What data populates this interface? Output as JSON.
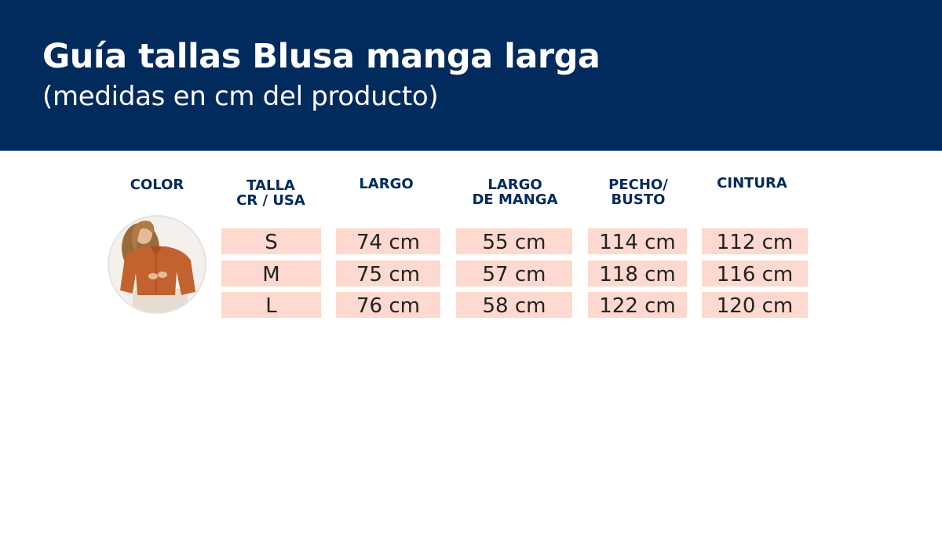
{
  "header": {
    "title": "Guía tallas Blusa manga larga",
    "subtitle": "(medidas en cm del producto)"
  },
  "colors": {
    "banner": "#012a5d",
    "cell_background": "#fdd9cf",
    "header_text": "#012a5d",
    "product_color": "#c2622e"
  },
  "table": {
    "headers": {
      "color": "COLOR",
      "talla": "TALLA\nCR / USA",
      "largo": "LARGO",
      "largo_manga": "LARGO\nDE MANGA",
      "pecho": "PECHO/\nBUSTO",
      "cintura": "CINTURA"
    },
    "rows": [
      {
        "talla": "S",
        "largo": "74 cm",
        "largo_manga": "55 cm",
        "pecho": "114 cm",
        "cintura": "112 cm"
      },
      {
        "talla": "M",
        "largo": "75 cm",
        "largo_manga": "57 cm",
        "pecho": "118 cm",
        "cintura": "116 cm"
      },
      {
        "talla": "L",
        "largo": "76 cm",
        "largo_manga": "58 cm",
        "pecho": "122 cm",
        "cintura": "120 cm"
      }
    ]
  }
}
